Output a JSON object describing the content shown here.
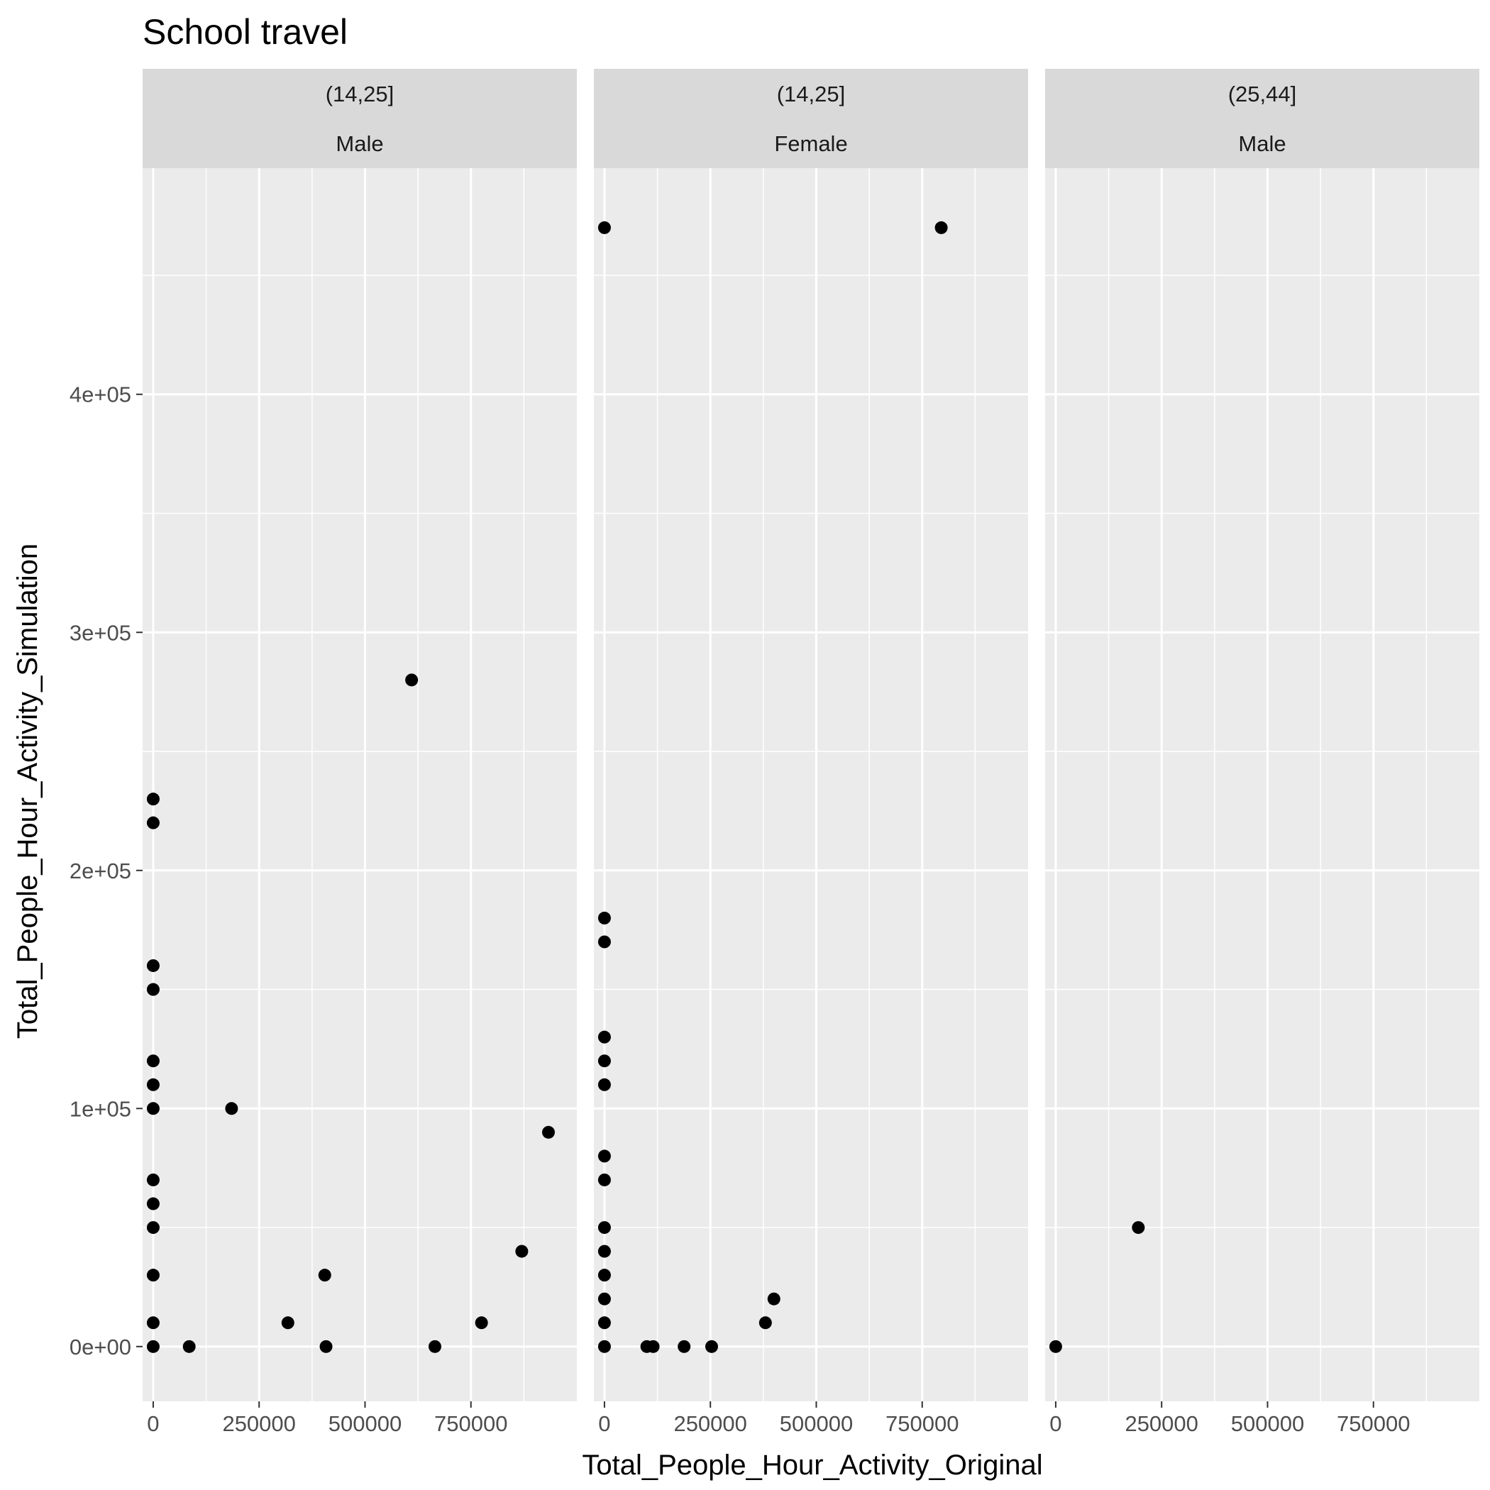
{
  "chart_data": {
    "type": "scatter",
    "title": "School travel",
    "xlabel": "Total_People_Hour_Activity_Original",
    "ylabel": "Total_People_Hour_Activity_Simulation",
    "xlim": [
      -25000,
      1000000
    ],
    "ylim": [
      -23000,
      495000
    ],
    "x_ticks": [
      0,
      250000,
      500000,
      750000
    ],
    "x_tick_labels": [
      "0",
      "250000",
      "500000",
      "750000"
    ],
    "y_ticks": [
      0,
      100000,
      200000,
      300000,
      400000
    ],
    "y_tick_labels": [
      "0e+00",
      "1e+05",
      "2e+05",
      "3e+05",
      "4e+05"
    ],
    "grid": true,
    "facets": [
      {
        "strip": [
          "(14,25]",
          "Male"
        ],
        "points": [
          {
            "x": 0,
            "y": 230000
          },
          {
            "x": 0,
            "y": 220000
          },
          {
            "x": 0,
            "y": 160000
          },
          {
            "x": 0,
            "y": 150000
          },
          {
            "x": 0,
            "y": 120000
          },
          {
            "x": 0,
            "y": 110000
          },
          {
            "x": 0,
            "y": 100000
          },
          {
            "x": 0,
            "y": 70000
          },
          {
            "x": 0,
            "y": 60000
          },
          {
            "x": 0,
            "y": 50000
          },
          {
            "x": 0,
            "y": 30000
          },
          {
            "x": 0,
            "y": 10000
          },
          {
            "x": 0,
            "y": 0
          },
          {
            "x": 85000,
            "y": 0
          },
          {
            "x": 185000,
            "y": 100000
          },
          {
            "x": 318000,
            "y": 10000
          },
          {
            "x": 405000,
            "y": 30000
          },
          {
            "x": 408000,
            "y": 0
          },
          {
            "x": 610000,
            "y": 280000
          },
          {
            "x": 665000,
            "y": 0
          },
          {
            "x": 775000,
            "y": 10000
          },
          {
            "x": 870000,
            "y": 40000
          },
          {
            "x": 933000,
            "y": 90000
          }
        ]
      },
      {
        "strip": [
          "(14,25]",
          "Female"
        ],
        "points": [
          {
            "x": 0,
            "y": 470000
          },
          {
            "x": 795000,
            "y": 470000
          },
          {
            "x": 0,
            "y": 180000
          },
          {
            "x": 0,
            "y": 170000
          },
          {
            "x": 0,
            "y": 130000
          },
          {
            "x": 0,
            "y": 120000
          },
          {
            "x": 0,
            "y": 110000
          },
          {
            "x": 0,
            "y": 80000
          },
          {
            "x": 0,
            "y": 70000
          },
          {
            "x": 0,
            "y": 50000
          },
          {
            "x": 0,
            "y": 40000
          },
          {
            "x": 0,
            "y": 30000
          },
          {
            "x": 0,
            "y": 20000
          },
          {
            "x": 0,
            "y": 10000
          },
          {
            "x": 0,
            "y": 0
          },
          {
            "x": 100000,
            "y": 0
          },
          {
            "x": 115000,
            "y": 0
          },
          {
            "x": 188000,
            "y": 0
          },
          {
            "x": 253000,
            "y": 0
          },
          {
            "x": 380000,
            "y": 10000
          },
          {
            "x": 400000,
            "y": 20000
          }
        ]
      },
      {
        "strip": [
          "(25,44]",
          "Male"
        ],
        "points": [
          {
            "x": 0,
            "y": 0
          },
          {
            "x": 195000,
            "y": 50000
          }
        ]
      }
    ]
  }
}
